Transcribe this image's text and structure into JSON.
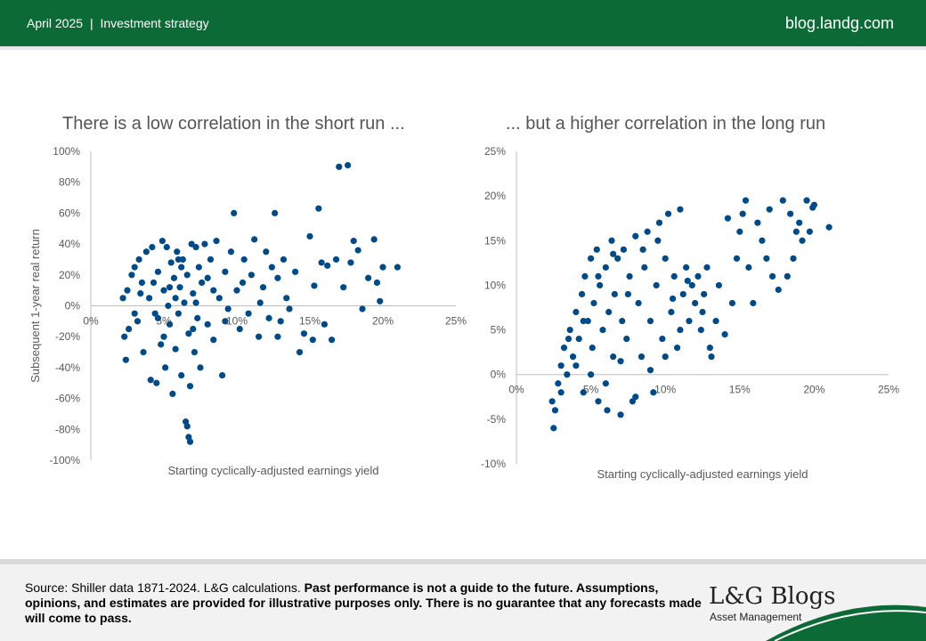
{
  "header": {
    "date": "April 2025",
    "separator": "|",
    "category": "Investment strategy",
    "site": "blog.landg.com"
  },
  "colors": {
    "brand_green": "#0c6a36",
    "point_color": "#004b87"
  },
  "chart_data": [
    {
      "type": "scatter",
      "title": "There is a low correlation in the short run ...",
      "xlabel": "Starting cyclically-adjusted earnings yield",
      "ylabel": "Subsequent 1-year real return",
      "xlim": [
        0,
        25
      ],
      "ylim": [
        -100,
        100
      ],
      "x_ticks": [
        "0%",
        "5%",
        "10%",
        "15%",
        "20%",
        "25%"
      ],
      "y_ticks": [
        "100%",
        "80%",
        "60%",
        "40%",
        "20%",
        "0%",
        "-20%",
        "-40%",
        "-60%",
        "-80%",
        "-100%"
      ],
      "grid": false,
      "points": [
        [
          2.2,
          5
        ],
        [
          2.3,
          -20
        ],
        [
          2.4,
          -35
        ],
        [
          2.5,
          10
        ],
        [
          2.6,
          -15
        ],
        [
          2.8,
          20
        ],
        [
          3.0,
          25
        ],
        [
          3.2,
          -10
        ],
        [
          3.3,
          30
        ],
        [
          3.5,
          15
        ],
        [
          3.6,
          -30
        ],
        [
          3.8,
          35
        ],
        [
          4.0,
          5
        ],
        [
          4.1,
          -48
        ],
        [
          4.2,
          38
        ],
        [
          4.4,
          -5
        ],
        [
          4.5,
          -50
        ],
        [
          4.6,
          22
        ],
        [
          4.8,
          -25
        ],
        [
          4.9,
          42
        ],
        [
          5.0,
          10
        ],
        [
          5.1,
          -40
        ],
        [
          5.2,
          38
        ],
        [
          5.3,
          0
        ],
        [
          5.4,
          -12
        ],
        [
          5.5,
          28
        ],
        [
          5.6,
          -57
        ],
        [
          5.7,
          18
        ],
        [
          5.8,
          -28
        ],
        [
          5.9,
          35
        ],
        [
          6.0,
          -5
        ],
        [
          6.1,
          12
        ],
        [
          6.2,
          -45
        ],
        [
          6.3,
          30
        ],
        [
          6.4,
          2
        ],
        [
          6.5,
          -75
        ],
        [
          6.6,
          20
        ],
        [
          6.7,
          -18
        ],
        [
          6.8,
          -52
        ],
        [
          6.9,
          40
        ],
        [
          6.6,
          -78
        ],
        [
          6.7,
          -85
        ],
        [
          6.8,
          -88
        ],
        [
          7.0,
          8
        ],
        [
          7.1,
          -30
        ],
        [
          7.2,
          38
        ],
        [
          7.3,
          -8
        ],
        [
          7.4,
          25
        ],
        [
          7.5,
          -40
        ],
        [
          7.6,
          15
        ],
        [
          7.8,
          40
        ],
        [
          8.0,
          -12
        ],
        [
          8.2,
          30
        ],
        [
          8.4,
          -22
        ],
        [
          8.6,
          42
        ],
        [
          8.8,
          5
        ],
        [
          9.0,
          -45
        ],
        [
          9.2,
          22
        ],
        [
          9.4,
          -2
        ],
        [
          9.6,
          35
        ],
        [
          9.8,
          60
        ],
        [
          10.0,
          10
        ],
        [
          10.2,
          -15
        ],
        [
          10.5,
          30
        ],
        [
          10.8,
          -5
        ],
        [
          11.0,
          20
        ],
        [
          11.2,
          43
        ],
        [
          11.5,
          -20
        ],
        [
          11.8,
          12
        ],
        [
          12.0,
          35
        ],
        [
          12.2,
          -8
        ],
        [
          12.4,
          25
        ],
        [
          12.6,
          60
        ],
        [
          12.8,
          18
        ],
        [
          13.0,
          -10
        ],
        [
          13.2,
          30
        ],
        [
          13.4,
          5
        ],
        [
          13.6,
          -2
        ],
        [
          14.0,
          22
        ],
        [
          14.3,
          -30
        ],
        [
          14.6,
          -18
        ],
        [
          15.0,
          45
        ],
        [
          15.2,
          -22
        ],
        [
          15.3,
          13
        ],
        [
          15.6,
          63
        ],
        [
          15.8,
          28
        ],
        [
          16.0,
          -12
        ],
        [
          16.2,
          26
        ],
        [
          16.5,
          -22
        ],
        [
          16.8,
          30
        ],
        [
          17.0,
          90
        ],
        [
          17.3,
          12
        ],
        [
          17.6,
          91
        ],
        [
          17.8,
          28
        ],
        [
          18.0,
          42
        ],
        [
          18.3,
          36
        ],
        [
          18.6,
          -2
        ],
        [
          19.0,
          18
        ],
        [
          19.4,
          43
        ],
        [
          19.6,
          15
        ],
        [
          19.8,
          3
        ],
        [
          20.0,
          25
        ],
        [
          21.0,
          25
        ],
        [
          3.0,
          -5
        ],
        [
          4.3,
          15
        ],
        [
          5.0,
          -20
        ],
        [
          5.8,
          5
        ],
        [
          6.2,
          25
        ],
        [
          7.0,
          -15
        ],
        [
          8.0,
          18
        ],
        [
          3.4,
          8
        ],
        [
          4.6,
          -8
        ],
        [
          5.4,
          12
        ],
        [
          6.0,
          30
        ],
        [
          7.2,
          2
        ],
        [
          8.4,
          10
        ],
        [
          9.2,
          -10
        ],
        [
          10.4,
          15
        ],
        [
          11.6,
          2
        ],
        [
          12.8,
          -20
        ]
      ]
    },
    {
      "type": "scatter",
      "title": "... but a higher correlation in the long run",
      "xlabel": "Starting cyclically-adjusted earnings yield",
      "ylabel": "",
      "xlim": [
        0,
        25
      ],
      "ylim": [
        -10,
        25
      ],
      "x_ticks": [
        "0%",
        "5%",
        "10%",
        "15%",
        "20%",
        "25%"
      ],
      "y_ticks": [
        "25%",
        "20%",
        "15%",
        "10%",
        "5%",
        "0%",
        "-5%",
        "-10%"
      ],
      "grid": false,
      "points": [
        [
          2.4,
          -3
        ],
        [
          2.5,
          -6
        ],
        [
          2.6,
          -4
        ],
        [
          2.8,
          -1
        ],
        [
          3.0,
          1
        ],
        [
          3.2,
          3
        ],
        [
          3.4,
          0
        ],
        [
          3.6,
          5
        ],
        [
          3.8,
          2
        ],
        [
          4.0,
          7
        ],
        [
          4.2,
          4
        ],
        [
          4.4,
          9
        ],
        [
          4.5,
          -2
        ],
        [
          4.6,
          11
        ],
        [
          4.8,
          6
        ],
        [
          5.0,
          13
        ],
        [
          5.1,
          3
        ],
        [
          5.2,
          8
        ],
        [
          5.4,
          14
        ],
        [
          5.5,
          -3
        ],
        [
          5.6,
          10
        ],
        [
          5.8,
          5
        ],
        [
          6.0,
          12
        ],
        [
          6.1,
          -4
        ],
        [
          6.2,
          7
        ],
        [
          6.4,
          15
        ],
        [
          6.5,
          2
        ],
        [
          6.6,
          9
        ],
        [
          6.8,
          13
        ],
        [
          7.0,
          -4.5
        ],
        [
          7.1,
          6
        ],
        [
          7.2,
          14
        ],
        [
          7.4,
          4
        ],
        [
          7.6,
          11
        ],
        [
          7.8,
          -3
        ],
        [
          8.0,
          15.5
        ],
        [
          8.2,
          8
        ],
        [
          8.4,
          2
        ],
        [
          8.6,
          12
        ],
        [
          8.8,
          16
        ],
        [
          9.0,
          6
        ],
        [
          9.2,
          -2
        ],
        [
          9.4,
          10
        ],
        [
          9.6,
          17
        ],
        [
          9.8,
          4
        ],
        [
          10.0,
          13
        ],
        [
          10.2,
          18
        ],
        [
          10.4,
          7
        ],
        [
          10.6,
          11
        ],
        [
          10.8,
          3
        ],
        [
          11.0,
          18.5
        ],
        [
          11.2,
          9
        ],
        [
          11.4,
          12
        ],
        [
          11.6,
          6
        ],
        [
          11.8,
          10
        ],
        [
          12.0,
          8
        ],
        [
          12.2,
          11
        ],
        [
          12.4,
          5
        ],
        [
          12.6,
          9
        ],
        [
          12.8,
          12
        ],
        [
          13.0,
          3
        ],
        [
          13.1,
          2
        ],
        [
          13.4,
          6
        ],
        [
          13.6,
          10
        ],
        [
          14.0,
          4.5
        ],
        [
          14.2,
          17.5
        ],
        [
          14.5,
          8
        ],
        [
          14.8,
          13
        ],
        [
          15.0,
          16
        ],
        [
          15.2,
          18
        ],
        [
          15.4,
          19.5
        ],
        [
          15.6,
          12
        ],
        [
          15.9,
          8
        ],
        [
          16.2,
          17
        ],
        [
          16.5,
          15
        ],
        [
          16.8,
          13
        ],
        [
          17.0,
          18.5
        ],
        [
          17.2,
          11
        ],
        [
          17.6,
          9.5
        ],
        [
          17.9,
          19.5
        ],
        [
          18.2,
          11
        ],
        [
          18.4,
          18
        ],
        [
          18.6,
          13
        ],
        [
          18.8,
          16
        ],
        [
          19.0,
          17
        ],
        [
          19.2,
          15
        ],
        [
          19.5,
          19.5
        ],
        [
          19.7,
          16
        ],
        [
          19.9,
          18.7
        ],
        [
          20.0,
          19
        ],
        [
          21.0,
          16.5
        ],
        [
          3.0,
          -2
        ],
        [
          4.0,
          1
        ],
        [
          5.0,
          0
        ],
        [
          6.0,
          -1
        ],
        [
          7.0,
          1.5
        ],
        [
          8.0,
          -2.5
        ],
        [
          9.0,
          0.5
        ],
        [
          10.0,
          2
        ],
        [
          11.0,
          5
        ],
        [
          3.5,
          4
        ],
        [
          4.5,
          6
        ],
        [
          5.5,
          11
        ],
        [
          6.5,
          13.5
        ],
        [
          7.5,
          9
        ],
        [
          8.5,
          14
        ],
        [
          9.5,
          15
        ],
        [
          10.5,
          8.5
        ],
        [
          11.5,
          10.5
        ],
        [
          12.5,
          7
        ]
      ]
    }
  ],
  "footer": {
    "source_plain": "Source: Shiller data 1871-2024. L&G calculations.",
    "source_bold": "Past performance is not a guide to the future. Assumptions, opinions, and estimates are provided for illustrative purposes only.  There is no guarantee that any forecasts made will come to pass.",
    "brand": "L&G Blogs",
    "brand_sub": "Asset Management"
  }
}
